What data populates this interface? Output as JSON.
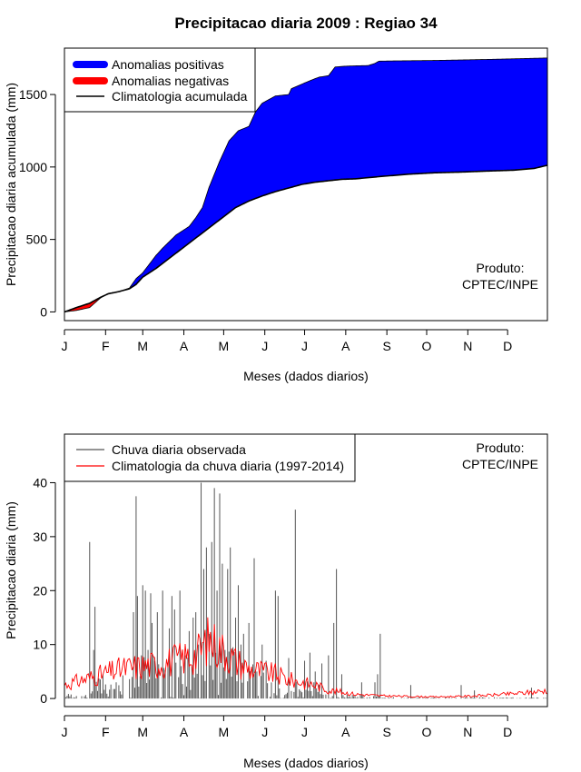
{
  "colors": {
    "positive": "#0000ff",
    "negative": "#ff0000",
    "climatology": "#000000",
    "observed": "#555555",
    "clim_daily": "#ff0000"
  },
  "chart_data": [
    {
      "type": "area",
      "title": "Precipitacao diaria 2009 : Regiao 34",
      "xlabel": "Meses (dados diarios)",
      "ylabel": "Precipitacao diaria acumulada (mm)",
      "xlim": [
        1,
        365
      ],
      "ylim": [
        -60,
        1820
      ],
      "month_labels": [
        "J",
        "F",
        "M",
        "A",
        "M",
        "J",
        "J",
        "A",
        "S",
        "O",
        "N",
        "D"
      ],
      "month_start_days": [
        1,
        32,
        60,
        91,
        121,
        152,
        182,
        213,
        244,
        274,
        305,
        335
      ],
      "y_ticks": [
        0,
        500,
        1000,
        1500
      ],
      "legend": [
        "Anomalias positivas",
        "Anomalias negativas",
        "Climatologia acumulada"
      ],
      "annotation": [
        "Produto:",
        "CPTEC/INPE"
      ],
      "observed_cumulative": {
        "day": [
          1,
          10,
          20,
          28,
          34,
          42,
          50,
          55,
          60,
          70,
          75,
          85,
          95,
          100,
          105,
          110,
          118,
          125,
          132,
          140,
          145,
          150,
          160,
          170,
          172,
          182,
          190,
          193,
          200,
          205,
          212,
          220,
          230,
          235,
          238,
          250,
          280,
          320,
          365
        ],
        "value": [
          0,
          10,
          30,
          95,
          128,
          140,
          165,
          230,
          270,
          390,
          440,
          530,
          590,
          650,
          720,
          860,
          1040,
          1180,
          1250,
          1280,
          1380,
          1440,
          1490,
          1500,
          1540,
          1580,
          1610,
          1620,
          1630,
          1690,
          1695,
          1698,
          1700,
          1715,
          1730,
          1732,
          1735,
          1742,
          1752
        ]
      },
      "climatology_cumulative": {
        "day": [
          1,
          10,
          20,
          28,
          34,
          42,
          50,
          55,
          60,
          70,
          80,
          90,
          100,
          110,
          120,
          130,
          140,
          150,
          160,
          170,
          180,
          190,
          200,
          210,
          220,
          240,
          260,
          280,
          300,
          320,
          340,
          355,
          365
        ],
        "value": [
          0,
          30,
          60,
          100,
          125,
          140,
          160,
          190,
          240,
          300,
          370,
          440,
          510,
          580,
          650,
          720,
          765,
          800,
          830,
          855,
          880,
          895,
          905,
          915,
          918,
          935,
          950,
          960,
          965,
          972,
          978,
          990,
          1012
        ]
      }
    },
    {
      "type": "bar",
      "xlabel": "Meses (dados diarios)",
      "ylabel": "Precipitacao diaria (mm)",
      "xlim": [
        1,
        365
      ],
      "ylim": [
        -1.5,
        49
      ],
      "month_labels": [
        "J",
        "F",
        "M",
        "A",
        "M",
        "J",
        "J",
        "A",
        "S",
        "O",
        "N",
        "D"
      ],
      "month_start_days": [
        1,
        32,
        60,
        91,
        121,
        152,
        182,
        213,
        244,
        274,
        305,
        335
      ],
      "y_ticks": [
        0,
        10,
        20,
        30,
        40
      ],
      "legend": [
        "Chuva diaria observada",
        "Climatologia da chuva diaria (1997-2014)"
      ],
      "annotation": [
        "Produto:",
        "CPTEC/INPE"
      ],
      "observed_daily_peaks": {
        "day": [
          20,
          23,
          24,
          30,
          40,
          52,
          53,
          55,
          56,
          59,
          60,
          62,
          64,
          66,
          67,
          71,
          75,
          80,
          82,
          84,
          88,
          89,
          92,
          95,
          98,
          100,
          102,
          104,
          106,
          108,
          110,
          112,
          114,
          116,
          118,
          120,
          122,
          124,
          126,
          128,
          130,
          132,
          134,
          136,
          140,
          144,
          146,
          150,
          153,
          160,
          162,
          170,
          175,
          182,
          186,
          190,
          195,
          200,
          204,
          206,
          210,
          225,
          235,
          237,
          239,
          262,
          300,
          310,
          353
        ],
        "value": [
          29,
          9,
          17,
          4.5,
          3,
          4,
          16,
          37.5,
          19,
          8,
          21,
          20,
          9,
          19.5,
          14,
          16,
          20,
          13,
          19,
          16.5,
          20,
          6,
          8,
          12.5,
          15,
          16,
          10,
          40,
          24,
          28,
          12,
          29,
          39,
          20,
          38,
          25,
          9,
          24,
          28,
          9.5,
          15,
          21,
          10,
          12,
          14,
          26,
          5,
          10,
          7,
          20,
          19,
          7.5,
          35,
          7,
          8.5,
          5,
          6.5,
          8,
          14,
          24,
          4.5,
          3,
          3,
          4.5,
          12,
          2.5,
          2.5,
          1.5,
          2
        ]
      },
      "climatology_daily_profile": {
        "day": [
          1,
          15,
          30,
          45,
          60,
          75,
          90,
          100,
          105,
          110,
          120,
          130,
          140,
          150,
          160,
          170,
          180,
          190,
          200,
          210,
          220,
          240,
          260,
          280,
          300,
          320,
          340,
          355,
          365
        ],
        "value": [
          2.5,
          3.5,
          4.5,
          5.5,
          6,
          6.5,
          7.5,
          8,
          9.5,
          11,
          9,
          7,
          5.5,
          5,
          4.5,
          3.5,
          3,
          2.5,
          1.5,
          1.2,
          0.8,
          0.5,
          0.4,
          0.3,
          0.4,
          0.6,
          0.9,
          1.2,
          1.5
        ]
      }
    }
  ]
}
